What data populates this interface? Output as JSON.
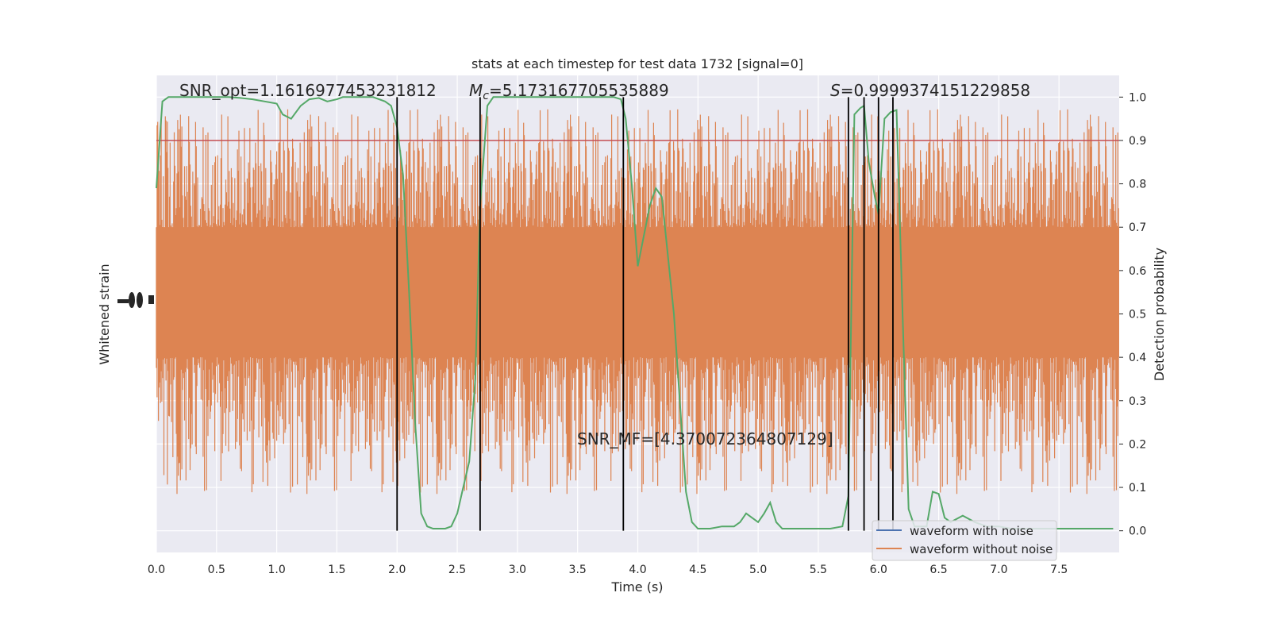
{
  "chart_data": {
    "type": "line",
    "title": "stats at each timestep for test data 1732 [signal=0]",
    "xlabel": "Time (s)",
    "ylabel_left": "Whitened strain",
    "ylabel_right": "Detection probability",
    "xlim": [
      0,
      8
    ],
    "ylim_right": [
      -0.05,
      1.05
    ],
    "x_ticks": [
      "0.0",
      "0.5",
      "1.0",
      "1.5",
      "2.0",
      "2.5",
      "3.0",
      "3.5",
      "4.0",
      "4.5",
      "5.0",
      "5.5",
      "6.0",
      "6.5",
      "7.0",
      "7.5"
    ],
    "x_tick_values": [
      0,
      0.5,
      1,
      1.5,
      2,
      2.5,
      3,
      3.5,
      4,
      4.5,
      5,
      5.5,
      6,
      6.5,
      7,
      7.5
    ],
    "y_right_ticks": [
      "0.0",
      "0.1",
      "0.2",
      "0.3",
      "0.4",
      "0.5",
      "0.6",
      "0.7",
      "0.8",
      "0.9",
      "1.0"
    ],
    "y_right_tick_values": [
      0,
      0.1,
      0.2,
      0.3,
      0.4,
      0.5,
      0.6,
      0.7,
      0.8,
      0.9,
      1.0
    ],
    "grid": true,
    "legend_position": "bottom-right",
    "annotations": {
      "snr_opt": "SNR_opt=1.1616977453231812",
      "mc_symbol": "M",
      "mc_sub": "c",
      "mc_value": "=5.173167705535889",
      "s_symbol": "S",
      "s_value": "=0.9999374151229858",
      "snr_mf": "SNR_MF=[4.370072364807129]"
    },
    "threshold": 0.9,
    "vertical_lines": [
      2.0,
      2.69,
      3.88,
      5.75,
      5.88,
      6.0,
      6.12
    ],
    "series": [
      {
        "name": "waveform with noise",
        "color": "#4c72b0",
        "note_values": "not visible (hidden behind noise-free waveform)"
      },
      {
        "name": "waveform without noise",
        "color": "#dd8452",
        "band_core": [
          0.4,
          0.7
        ],
        "band_extent": [
          0.08,
          0.98
        ]
      },
      {
        "color": "#55a868",
        "x": [
          0,
          0.05,
          0.1,
          0.2,
          0.3,
          0.4,
          0.5,
          0.6,
          0.7,
          0.8,
          0.9,
          1.0,
          1.05,
          1.12,
          1.2,
          1.27,
          1.35,
          1.42,
          1.5,
          1.55,
          1.6,
          1.7,
          1.8,
          1.9,
          1.95,
          2.0,
          2.05,
          2.1,
          2.15,
          2.2,
          2.25,
          2.3,
          2.4,
          2.45,
          2.5,
          2.55,
          2.6,
          2.65,
          2.69,
          2.75,
          2.8,
          2.9,
          3.0,
          3.2,
          3.4,
          3.6,
          3.7,
          3.8,
          3.86,
          3.9,
          3.95,
          4.0,
          4.05,
          4.1,
          4.15,
          4.2,
          4.3,
          4.4,
          4.45,
          4.5,
          4.6,
          4.7,
          4.8,
          4.85,
          4.9,
          4.95,
          5.0,
          5.05,
          5.1,
          5.15,
          5.2,
          5.3,
          5.4,
          5.5,
          5.6,
          5.7,
          5.75,
          5.8,
          5.85,
          5.88,
          5.92,
          5.97,
          6.0,
          6.05,
          6.1,
          6.15,
          6.2,
          6.25,
          6.3,
          6.4,
          6.45,
          6.5,
          6.55,
          6.6,
          6.7,
          6.8,
          6.9,
          7.0,
          7.1,
          7.3,
          7.5,
          7.7,
          7.85,
          7.95
        ],
        "values": [
          0.79,
          0.99,
          1.0,
          1.0,
          1.0,
          1.0,
          1.0,
          1.0,
          0.998,
          0.995,
          0.99,
          0.985,
          0.96,
          0.95,
          0.98,
          0.995,
          0.998,
          0.99,
          0.995,
          1.0,
          1.0,
          1.0,
          1.0,
          0.99,
          0.98,
          0.93,
          0.82,
          0.55,
          0.25,
          0.04,
          0.01,
          0.005,
          0.005,
          0.01,
          0.04,
          0.1,
          0.16,
          0.35,
          0.75,
          0.98,
          1.0,
          1.0,
          1.0,
          1.0,
          1.0,
          1.0,
          1.0,
          1.0,
          0.995,
          0.95,
          0.8,
          0.61,
          0.68,
          0.75,
          0.79,
          0.77,
          0.5,
          0.09,
          0.02,
          0.005,
          0.005,
          0.01,
          0.01,
          0.02,
          0.04,
          0.03,
          0.02,
          0.04,
          0.065,
          0.02,
          0.005,
          0.005,
          0.005,
          0.005,
          0.005,
          0.01,
          0.08,
          0.96,
          0.975,
          0.98,
          0.85,
          0.77,
          0.73,
          0.95,
          0.965,
          0.97,
          0.5,
          0.05,
          0.01,
          0.01,
          0.09,
          0.085,
          0.03,
          0.02,
          0.035,
          0.02,
          0.01,
          0.01,
          0.005,
          0.005,
          0.005,
          0.005,
          0.005,
          0.005
        ]
      }
    ]
  }
}
